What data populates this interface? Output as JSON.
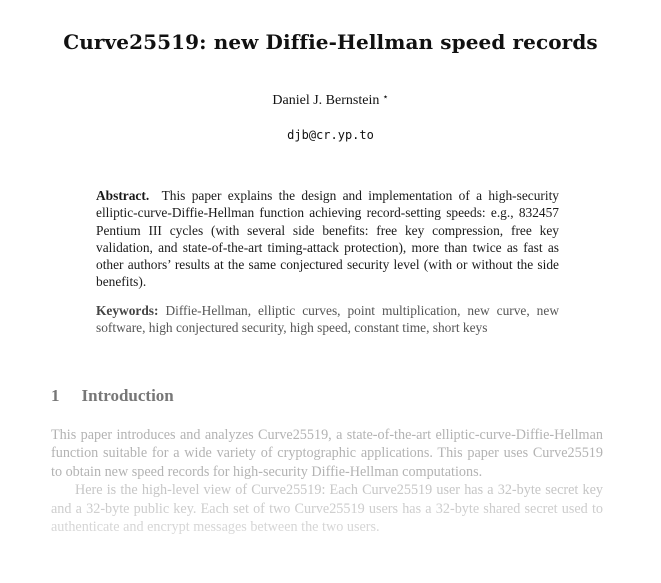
{
  "paper": {
    "title": "Curve25519: new Diffie-Hellman speed records",
    "author": "Daniel J. Bernstein",
    "author_mark": "⋆",
    "email": "djb@cr.yp.to",
    "abstract_label": "Abstract.",
    "abstract_text": "This paper explains the design and implementation of a high-security elliptic-curve-Diffie-Hellman function achieving record-setting speeds: e.g., 832457 Pentium III cycles (with several side benefits: free key compression, free key validation, and state-of-the-art timing-attack protection), more than twice as fast as other authors’ results at the same conjectured security level (with or without the side benefits).",
    "keywords_label": "Keywords:",
    "keywords_text": "Diffie-Hellman, elliptic curves, point multiplication, new curve, new software, high conjectured security, high speed, constant time, short keys",
    "section_number": "1",
    "section_title": "Introduction",
    "paragraph1": "This paper introduces and analyzes Curve25519, a state-of-the-art elliptic-curve-Diffie-Hellman function suitable for a wide variety of cryptographic applications. This paper uses Curve25519 to obtain new speed records for high-security Diffie-Hellman computations.",
    "paragraph2": "Here is the high-level view of Curve25519: Each Curve25519 user has a 32-byte secret key and a 32-byte public key. Each set of two Curve25519 users has a 32-byte shared secret used to authenticate and encrypt messages between the two users."
  }
}
